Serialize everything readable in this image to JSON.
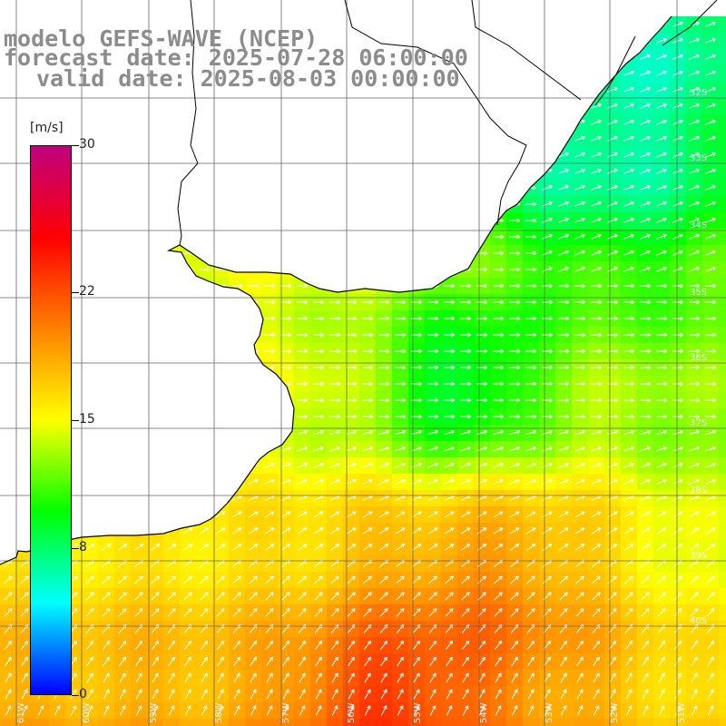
{
  "header": {
    "model": "modelo GEFS-WAVE (NCEP)",
    "forecast": "forecast date: 2025-07-28 06:00:00",
    "valid": "valid date: 2025-08-03 00:00:00"
  },
  "colorbar": {
    "unit": "[m/s]",
    "min": 0,
    "max": 30,
    "ticks": [
      "30",
      "22",
      "15",
      "8",
      "0"
    ],
    "tick_values": [
      30,
      22,
      15,
      8,
      0
    ],
    "colors": [
      "#0000ff",
      "#00ffff",
      "#00ff00",
      "#ffff00",
      "#ff8000",
      "#ff0000",
      "#c00080"
    ]
  },
  "map": {
    "lat_labels": [
      "32S",
      "33S",
      "34S",
      "35S",
      "36S",
      "37S",
      "38S",
      "39S",
      "40S"
    ],
    "lon_labels": [
      "61W",
      "60W",
      "59W",
      "58W",
      "57W",
      "56W",
      "55W",
      "54W",
      "53W",
      "52W",
      "51W"
    ],
    "land_color": "#ffffff",
    "coast_color": "#000000",
    "grid_color": "#555555",
    "arrow_color": "#ffffff"
  }
}
